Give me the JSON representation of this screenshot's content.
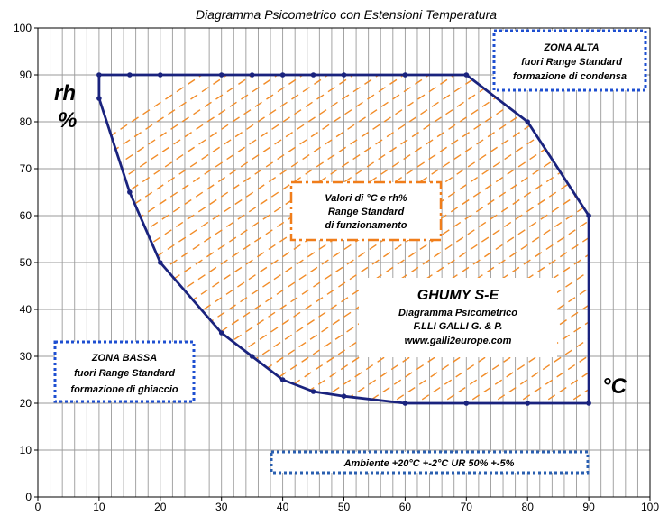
{
  "chart_data": {
    "type": "line",
    "title": "Diagramma Psicometrico con Estensioni Temperatura",
    "xlabel": "°C",
    "ylabel_line1": "rh",
    "ylabel_line2": "%",
    "xlim": [
      0,
      100
    ],
    "ylim": [
      0,
      100
    ],
    "x_ticks": [
      0,
      10,
      20,
      30,
      40,
      50,
      60,
      70,
      80,
      90,
      100
    ],
    "y_ticks": [
      0,
      10,
      20,
      30,
      40,
      50,
      60,
      70,
      80,
      90,
      100
    ],
    "grid": true,
    "series": [
      {
        "color": "#1a237e",
        "points": [
          [
            10,
            90
          ],
          [
            15,
            90
          ],
          [
            20,
            90
          ],
          [
            30,
            90
          ],
          [
            35,
            90
          ],
          [
            40,
            90
          ],
          [
            45,
            90
          ],
          [
            50,
            90
          ],
          [
            60,
            90
          ],
          [
            70,
            90
          ],
          [
            80,
            80
          ],
          [
            90,
            60
          ],
          [
            90,
            20
          ],
          [
            80,
            20
          ],
          [
            70,
            20
          ],
          [
            60,
            20
          ],
          [
            50,
            21.5
          ],
          [
            45,
            22.5
          ],
          [
            40,
            25
          ],
          [
            35,
            30
          ],
          [
            30,
            35
          ],
          [
            20,
            50
          ],
          [
            15,
            65
          ],
          [
            10,
            85
          ],
          [
            10,
            90
          ]
        ]
      }
    ],
    "annotations": {
      "zona_alta": [
        "ZONA ALTA",
        "fuori Range Standard",
        "formazione di condensa"
      ],
      "zona_bassa": [
        "ZONA BASSA",
        "fuori Range Standard",
        "formazione di ghiaccio"
      ],
      "range_standard": [
        "Valori di °C e rh%",
        "Range Standard",
        "di funzionamento"
      ],
      "ambiente": "Ambiente +20°C +-2°C UR 50% +-5%",
      "brand_title": "GHUMY S-E",
      "brand_lines": [
        "Diagramma Psicometrico",
        "F.LLI GALLI G. & P.",
        "www.galli2europe.com"
      ]
    },
    "colors": {
      "series_line": "#1a237e",
      "hatch": "#f28c28",
      "zone_box": "#1e4fd1",
      "range_box": "#f07d1a",
      "ambiente_box": "#2a5fb0",
      "grid": "#9a9a9a"
    }
  }
}
